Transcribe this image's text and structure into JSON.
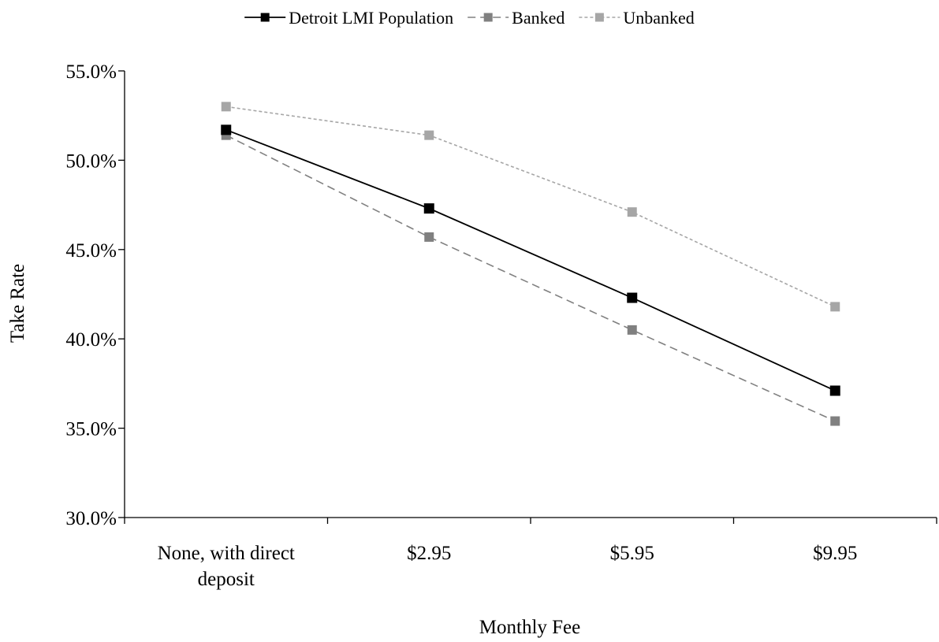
{
  "chart_data": {
    "type": "line",
    "title": "",
    "xlabel": "Monthly Fee",
    "ylabel": "Take Rate",
    "categories": [
      [
        "None, with direct",
        "deposit"
      ],
      [
        "$2.95"
      ],
      [
        "$5.95"
      ],
      [
        "$9.95"
      ]
    ],
    "ylim": [
      30.0,
      55.0
    ],
    "yticks": [
      "30.0%",
      "35.0%",
      "40.0%",
      "45.0%",
      "50.0%",
      "55.0%"
    ],
    "ytick_values": [
      30,
      35,
      40,
      45,
      50,
      55
    ],
    "grid": false,
    "legend_position": "top",
    "series": [
      {
        "name": "Detroit LMI Population",
        "values": [
          51.7,
          47.3,
          42.3,
          37.1
        ],
        "color": "#000000",
        "line_style": "solid",
        "marker": "square"
      },
      {
        "name": "Banked",
        "values": [
          51.4,
          45.7,
          40.5,
          35.4
        ],
        "color": "#808080",
        "line_style": "dashed",
        "marker": "square"
      },
      {
        "name": "Unbanked",
        "values": [
          53.0,
          51.4,
          47.1,
          41.8
        ],
        "color": "#a6a6a6",
        "line_style": "dotted",
        "marker": "square"
      }
    ]
  }
}
